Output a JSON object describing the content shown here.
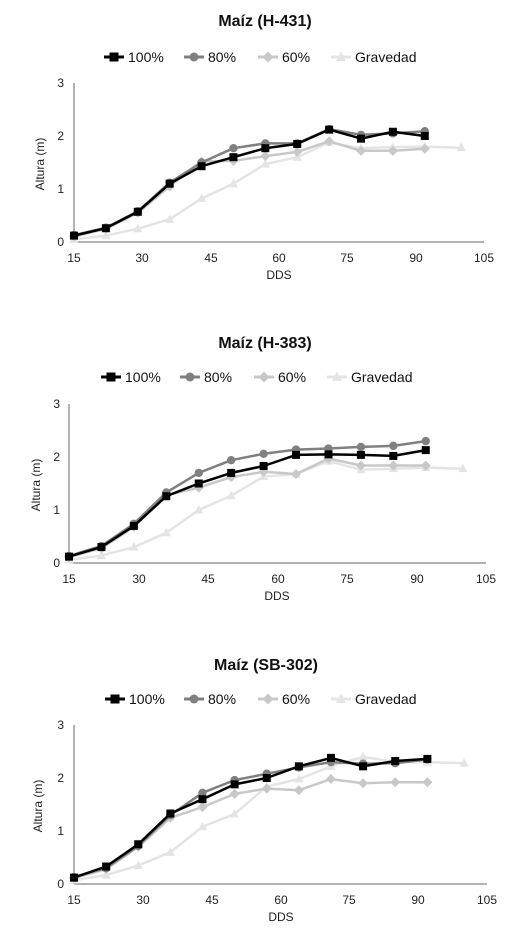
{
  "chart_data": [
    {
      "type": "line",
      "title": "Maíz (H-431)",
      "xlabel": "DDS",
      "ylabel": "Altura (m)",
      "xlim": [
        15,
        105
      ],
      "ylim": [
        0,
        3
      ],
      "xticks": [
        "15",
        "30",
        "45",
        "60",
        "75",
        "90",
        "105"
      ],
      "yticks": [
        "0",
        "1",
        "2",
        "3"
      ],
      "legend_position": "top",
      "series": [
        {
          "name": "100%",
          "color": "#000000",
          "marker": "square",
          "x": [
            15,
            22,
            29,
            36,
            43,
            50,
            57,
            64,
            71,
            78,
            85,
            92
          ],
          "y": [
            0.12,
            0.26,
            0.57,
            1.1,
            1.43,
            1.6,
            1.77,
            1.85,
            2.12,
            1.95,
            2.08,
            2.0
          ]
        },
        {
          "name": "80%",
          "color": "#808080",
          "marker": "circle",
          "x": [
            15,
            22,
            29,
            36,
            43,
            50,
            57,
            64,
            71,
            78,
            85,
            92
          ],
          "y": [
            0.13,
            0.27,
            0.58,
            1.12,
            1.5,
            1.77,
            1.86,
            1.86,
            2.13,
            2.02,
            2.05,
            2.09
          ]
        },
        {
          "name": "60%",
          "color": "#c8c8c8",
          "marker": "diamond",
          "x": [
            15,
            22,
            29,
            36,
            43,
            50,
            57,
            64,
            71,
            78,
            85,
            92
          ],
          "y": [
            0.1,
            0.25,
            0.55,
            1.05,
            1.52,
            1.53,
            1.62,
            1.7,
            1.9,
            1.72,
            1.72,
            1.76
          ]
        },
        {
          "name": "Gravedad",
          "color": "#e4e4e4",
          "marker": "triangle",
          "x": [
            15,
            22,
            29,
            36,
            43,
            50,
            57,
            64,
            71,
            78,
            85,
            92,
            100
          ],
          "y": [
            0.05,
            0.12,
            0.25,
            0.43,
            0.82,
            1.1,
            1.47,
            1.6,
            1.88,
            1.77,
            1.79,
            1.8,
            1.78
          ]
        }
      ]
    },
    {
      "type": "line",
      "title": "Maíz (H-383)",
      "xlabel": "DDS",
      "ylabel": "Altura (m)",
      "xlim": [
        15,
        105
      ],
      "ylim": [
        0,
        3
      ],
      "xticks": [
        "15",
        "30",
        "45",
        "60",
        "75",
        "90",
        "105"
      ],
      "yticks": [
        "0",
        "1",
        "2",
        "3"
      ],
      "legend_position": "top",
      "series": [
        {
          "name": "100%",
          "color": "#000000",
          "marker": "square",
          "x": [
            15,
            22,
            29,
            36,
            43,
            50,
            57,
            64,
            71,
            78,
            85,
            92
          ],
          "y": [
            0.12,
            0.3,
            0.7,
            1.26,
            1.5,
            1.7,
            1.83,
            2.04,
            2.05,
            2.04,
            2.02,
            2.13
          ]
        },
        {
          "name": "80%",
          "color": "#808080",
          "marker": "circle",
          "x": [
            15,
            22,
            29,
            36,
            43,
            50,
            57,
            64,
            71,
            78,
            85,
            92
          ],
          "y": [
            0.13,
            0.32,
            0.74,
            1.33,
            1.7,
            1.94,
            2.06,
            2.14,
            2.16,
            2.19,
            2.21,
            2.3
          ]
        },
        {
          "name": "60%",
          "color": "#c8c8c8",
          "marker": "diamond",
          "x": [
            15,
            22,
            29,
            36,
            43,
            50,
            57,
            64,
            71,
            78,
            85,
            92
          ],
          "y": [
            0.11,
            0.28,
            0.68,
            1.28,
            1.42,
            1.62,
            1.72,
            1.68,
            1.97,
            1.84,
            1.84,
            1.84
          ]
        },
        {
          "name": "Gravedad",
          "color": "#e4e4e4",
          "marker": "triangle",
          "x": [
            15,
            22,
            29,
            36,
            43,
            50,
            57,
            64,
            71,
            78,
            85,
            92,
            100
          ],
          "y": [
            0.06,
            0.14,
            0.3,
            0.57,
            1.0,
            1.27,
            1.63,
            1.68,
            1.92,
            1.76,
            1.78,
            1.8,
            1.78
          ]
        }
      ]
    },
    {
      "type": "line",
      "title": "Maíz (SB-302)",
      "xlabel": "DDS",
      "ylabel": "Altura (m)",
      "xlim": [
        15,
        105
      ],
      "ylim": [
        0,
        3
      ],
      "xticks": [
        "15",
        "30",
        "45",
        "60",
        "75",
        "90",
        "105"
      ],
      "yticks": [
        "0",
        "1",
        "2",
        "3"
      ],
      "legend_position": "top",
      "series": [
        {
          "name": "100%",
          "color": "#000000",
          "marker": "square",
          "x": [
            15,
            22,
            29,
            36,
            43,
            50,
            57,
            64,
            71,
            78,
            85,
            92
          ],
          "y": [
            0.12,
            0.33,
            0.75,
            1.33,
            1.6,
            1.88,
            2.0,
            2.22,
            2.38,
            2.22,
            2.32,
            2.36
          ]
        },
        {
          "name": "80%",
          "color": "#808080",
          "marker": "circle",
          "x": [
            15,
            22,
            29,
            36,
            43,
            50,
            57,
            64,
            71,
            78,
            85,
            92
          ],
          "y": [
            0.13,
            0.3,
            0.72,
            1.3,
            1.72,
            1.96,
            2.08,
            2.2,
            2.3,
            2.27,
            2.28,
            2.35
          ]
        },
        {
          "name": "60%",
          "color": "#c8c8c8",
          "marker": "diamond",
          "x": [
            15,
            22,
            29,
            36,
            43,
            50,
            57,
            64,
            71,
            78,
            85,
            92
          ],
          "y": [
            0.11,
            0.28,
            0.7,
            1.25,
            1.45,
            1.7,
            1.8,
            1.77,
            1.98,
            1.9,
            1.92,
            1.92
          ]
        },
        {
          "name": "Gravedad",
          "color": "#e4e4e4",
          "marker": "triangle",
          "x": [
            15,
            22,
            29,
            36,
            43,
            50,
            57,
            64,
            71,
            78,
            85,
            92,
            100
          ],
          "y": [
            0.07,
            0.17,
            0.35,
            0.6,
            1.08,
            1.32,
            1.84,
            1.98,
            2.22,
            2.4,
            2.3,
            2.3,
            2.28
          ]
        }
      ]
    }
  ]
}
